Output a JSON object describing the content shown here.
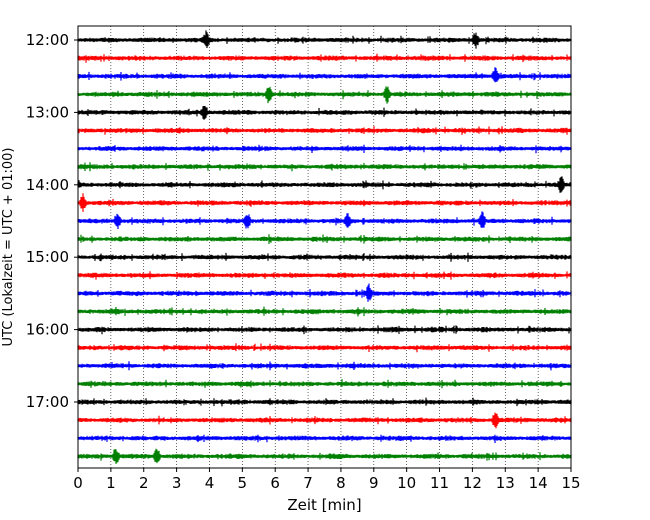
{
  "chart_data": {
    "type": "line",
    "title": "",
    "xlabel": "Zeit  [min]",
    "ylabel": "UTC (Lokalzeit = UTC + 01:00)",
    "xlim": [
      0,
      15
    ],
    "x_ticks": [
      0,
      1,
      2,
      3,
      4,
      5,
      6,
      7,
      8,
      9,
      10,
      11,
      12,
      13,
      14,
      15
    ],
    "x_tick_labels": [
      "0",
      "1",
      "2",
      "3",
      "4",
      "5",
      "6",
      "7",
      "8",
      "9",
      "10",
      "11",
      "12",
      "13",
      "14",
      "15"
    ],
    "y_tick_labels": [
      "12:00",
      "13:00",
      "14:00",
      "15:00",
      "16:00",
      "17:00"
    ],
    "grid": "vertical dotted",
    "colors": [
      "#000000",
      "#ff0000",
      "#0000ff",
      "#008000"
    ],
    "series": [
      {
        "start": "12:00",
        "color": "#000000",
        "events": [
          3.9,
          12.1
        ]
      },
      {
        "start": "12:15",
        "color": "#ff0000",
        "events": []
      },
      {
        "start": "12:30",
        "color": "#0000ff",
        "events": [
          12.7
        ]
      },
      {
        "start": "12:45",
        "color": "#008000",
        "events": [
          9.4,
          5.8
        ]
      },
      {
        "start": "13:00",
        "color": "#000000",
        "events": [
          3.85
        ]
      },
      {
        "start": "13:15",
        "color": "#ff0000",
        "events": []
      },
      {
        "start": "13:30",
        "color": "#0000ff",
        "events": []
      },
      {
        "start": "13:45",
        "color": "#008000",
        "events": []
      },
      {
        "start": "14:00",
        "color": "#000000",
        "events": [
          14.7
        ]
      },
      {
        "start": "14:15",
        "color": "#ff0000",
        "events": [
          0.15
        ]
      },
      {
        "start": "14:30",
        "color": "#0000ff",
        "events": [
          1.2,
          5.15,
          8.2,
          12.3
        ]
      },
      {
        "start": "14:45",
        "color": "#008000",
        "events": []
      },
      {
        "start": "15:00",
        "color": "#000000",
        "events": []
      },
      {
        "start": "15:15",
        "color": "#ff0000",
        "events": []
      },
      {
        "start": "15:30",
        "color": "#0000ff",
        "events": [
          8.85
        ]
      },
      {
        "start": "15:45",
        "color": "#008000",
        "events": []
      },
      {
        "start": "16:00",
        "color": "#000000",
        "events": []
      },
      {
        "start": "16:15",
        "color": "#ff0000",
        "events": []
      },
      {
        "start": "16:30",
        "color": "#0000ff",
        "events": []
      },
      {
        "start": "16:45",
        "color": "#008000",
        "events": []
      },
      {
        "start": "17:00",
        "color": "#000000",
        "events": []
      },
      {
        "start": "17:15",
        "color": "#ff0000",
        "events": [
          12.7
        ]
      },
      {
        "start": "17:30",
        "color": "#0000ff",
        "events": []
      },
      {
        "start": "17:45",
        "color": "#008000",
        "events": [
          1.15,
          2.4
        ]
      }
    ]
  }
}
